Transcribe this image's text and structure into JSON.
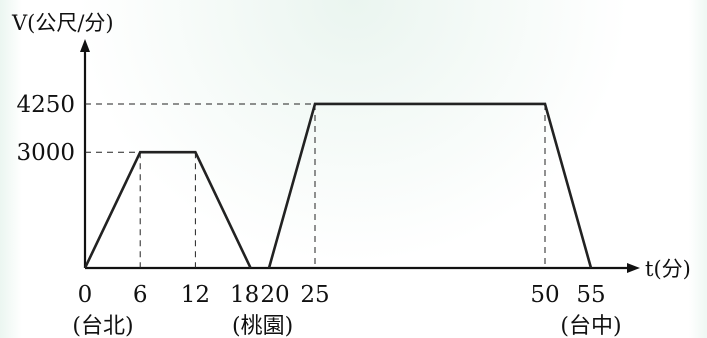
{
  "chart_data": {
    "type": "line",
    "title": "",
    "xlabel": "t(分)",
    "ylabel": "V(公尺/分)",
    "x": [
      0,
      6,
      12,
      18,
      20,
      25,
      50,
      55
    ],
    "series": [
      {
        "points": [
          [
            0,
            0
          ],
          [
            6,
            3000
          ],
          [
            12,
            3000
          ],
          [
            18,
            0
          ],
          [
            20,
            0
          ],
          [
            25,
            4250
          ],
          [
            50,
            4250
          ],
          [
            55,
            0
          ]
        ]
      }
    ],
    "x_ticks": [
      "0",
      "6",
      "12",
      "18",
      "20",
      "25",
      "50",
      "55"
    ],
    "y_ticks": [
      "3000",
      "4250"
    ],
    "y_tick_values": [
      3000,
      4250
    ],
    "x_ticks_values": [
      0,
      6,
      12,
      18,
      20,
      25,
      50,
      55
    ],
    "place_labels": [
      {
        "x": 0,
        "label": "(台北)"
      },
      {
        "x": 18,
        "label": "(桃園)"
      },
      {
        "x": 55,
        "label": "(台中)"
      }
    ],
    "grid": false,
    "xlim": [
      0,
      60
    ],
    "ylim": [
      0,
      4800
    ]
  },
  "colors": {
    "line": "#222222",
    "axis": "#111111",
    "dash": "#222222"
  }
}
